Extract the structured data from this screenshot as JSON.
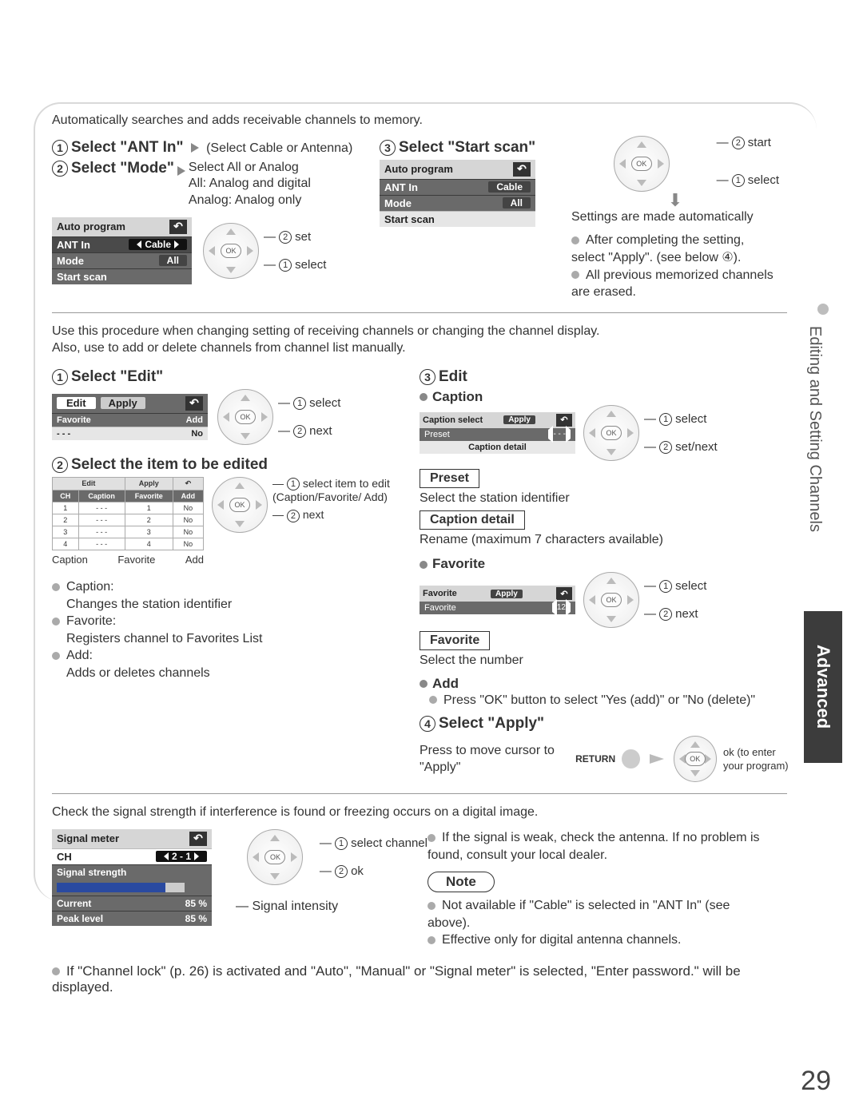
{
  "pageNumber": "29",
  "sideBar": {
    "section": "Editing and Setting Channels",
    "tab": "Advanced"
  },
  "auto": {
    "intro": "Automatically searches and adds receivable channels to memory.",
    "s1": {
      "label": "Select \"ANT In\"",
      "hint": "(Select Cable or Antenna)"
    },
    "s2": {
      "label": "Select \"Mode\"",
      "hint1": "Select All or Analog",
      "hint2": "All: Analog and digital",
      "hint3": "Analog: Analog only"
    },
    "s3": {
      "label": "Select \"Start scan\""
    },
    "menu": {
      "title": "Auto program",
      "r1k": "ANT In",
      "r1v": "Cable",
      "r2k": "Mode",
      "r2v": "All",
      "r3k": "Start scan"
    },
    "dpad_a": {
      "c1": "set",
      "c2": "select"
    },
    "dpad_b": {
      "c1": "start",
      "c2": "select"
    },
    "settings": "Settings are made automatically",
    "n1": "After completing the setting, select \"Apply\". (see below ④).",
    "n2": "All previous memorized channels are erased."
  },
  "manual": {
    "intro1": "Use this procedure when changing setting of receiving channels or changing the channel display.",
    "intro2": "Also, use to add or delete channels from channel list manually.",
    "s1": "Select \"Edit\"",
    "s2": "Select the item to be edited",
    "s3": "Edit",
    "s4": "Select \"Apply\"",
    "editMenu": {
      "tabEdit": "Edit",
      "tabApply": "Apply",
      "col1": "Favorite",
      "col2": "Add",
      "v1": "- - -",
      "v2": "No"
    },
    "dpad1": {
      "c1": "select",
      "c2": "next"
    },
    "dpad2": {
      "c1": "select item to edit (Caption/Favorite/ Add)",
      "c2": "next"
    },
    "dpad3": {
      "c1": "select",
      "c2": "set/next"
    },
    "dpad4": {
      "c1": "select",
      "c2": "next"
    },
    "tbl": {
      "h1": "CH",
      "h2": "Caption",
      "h3": "Favorite",
      "h4": "Add",
      "rows": [
        [
          "1",
          "- - -",
          "1",
          "No"
        ],
        [
          "2",
          "- - -",
          "2",
          "No"
        ],
        [
          "3",
          "- - -",
          "3",
          "No"
        ],
        [
          "4",
          "- - -",
          "4",
          "No"
        ]
      ],
      "labCaption": "Caption",
      "labFav": "Favorite",
      "labAdd": "Add"
    },
    "optList": {
      "o1h": "Caption:",
      "o1t": "Changes the station identifier",
      "o2h": "Favorite:",
      "o2t": "Registers channel to Favorites List",
      "o3h": "Add:",
      "o3t": "Adds or deletes channels"
    },
    "caption": {
      "h": "Caption",
      "menuTitle": "Caption select",
      "apply": "Apply",
      "rowK": "Preset",
      "rowV": "- - -",
      "foot": "Caption detail",
      "presetLab": "Preset",
      "presetTxt": "Select the station identifier",
      "detailLab": "Caption detail",
      "detailTxt": "Rename (maximum 7 characters available)"
    },
    "favorite": {
      "h": "Favorite",
      "menuTitle": "Favorite",
      "apply": "Apply",
      "rowK": "Favorite",
      "rowV": "12",
      "lab": "Favorite",
      "txt": "Select the number"
    },
    "add": {
      "h": "Add",
      "t": "Press \"OK\" button to select \"Yes (add)\" or \"No (delete)\""
    },
    "apply": {
      "t": "Press to move cursor to \"Apply\"",
      "return": "RETURN",
      "ok": "ok (to enter your program)"
    }
  },
  "signal": {
    "intro": "Check the signal strength if interference is found or freezing occurs on a digital image.",
    "menuTitle": "Signal meter",
    "chK": "CH",
    "chV": "2 - 1",
    "strLab": "Signal strength",
    "pct": 85,
    "curK": "Current",
    "curV": "85 %",
    "peakK": "Peak level",
    "peakV": "85 %",
    "dpad": {
      "c1": "select channel",
      "c2": "ok"
    },
    "sigLab": "Signal intensity",
    "r1": "If the signal is weak, check the antenna. If no problem is found, consult your local dealer.",
    "note": "Note",
    "b1": "Not available if \"Cable\" is selected in \"ANT In\" (see above).",
    "b2": "Effective only for digital antenna channels."
  },
  "foot": "If \"Channel lock\" (p. 26) is activated and \"Auto\", \"Manual\" or \"Signal meter\" is selected, \"Enter password.\" will be displayed."
}
